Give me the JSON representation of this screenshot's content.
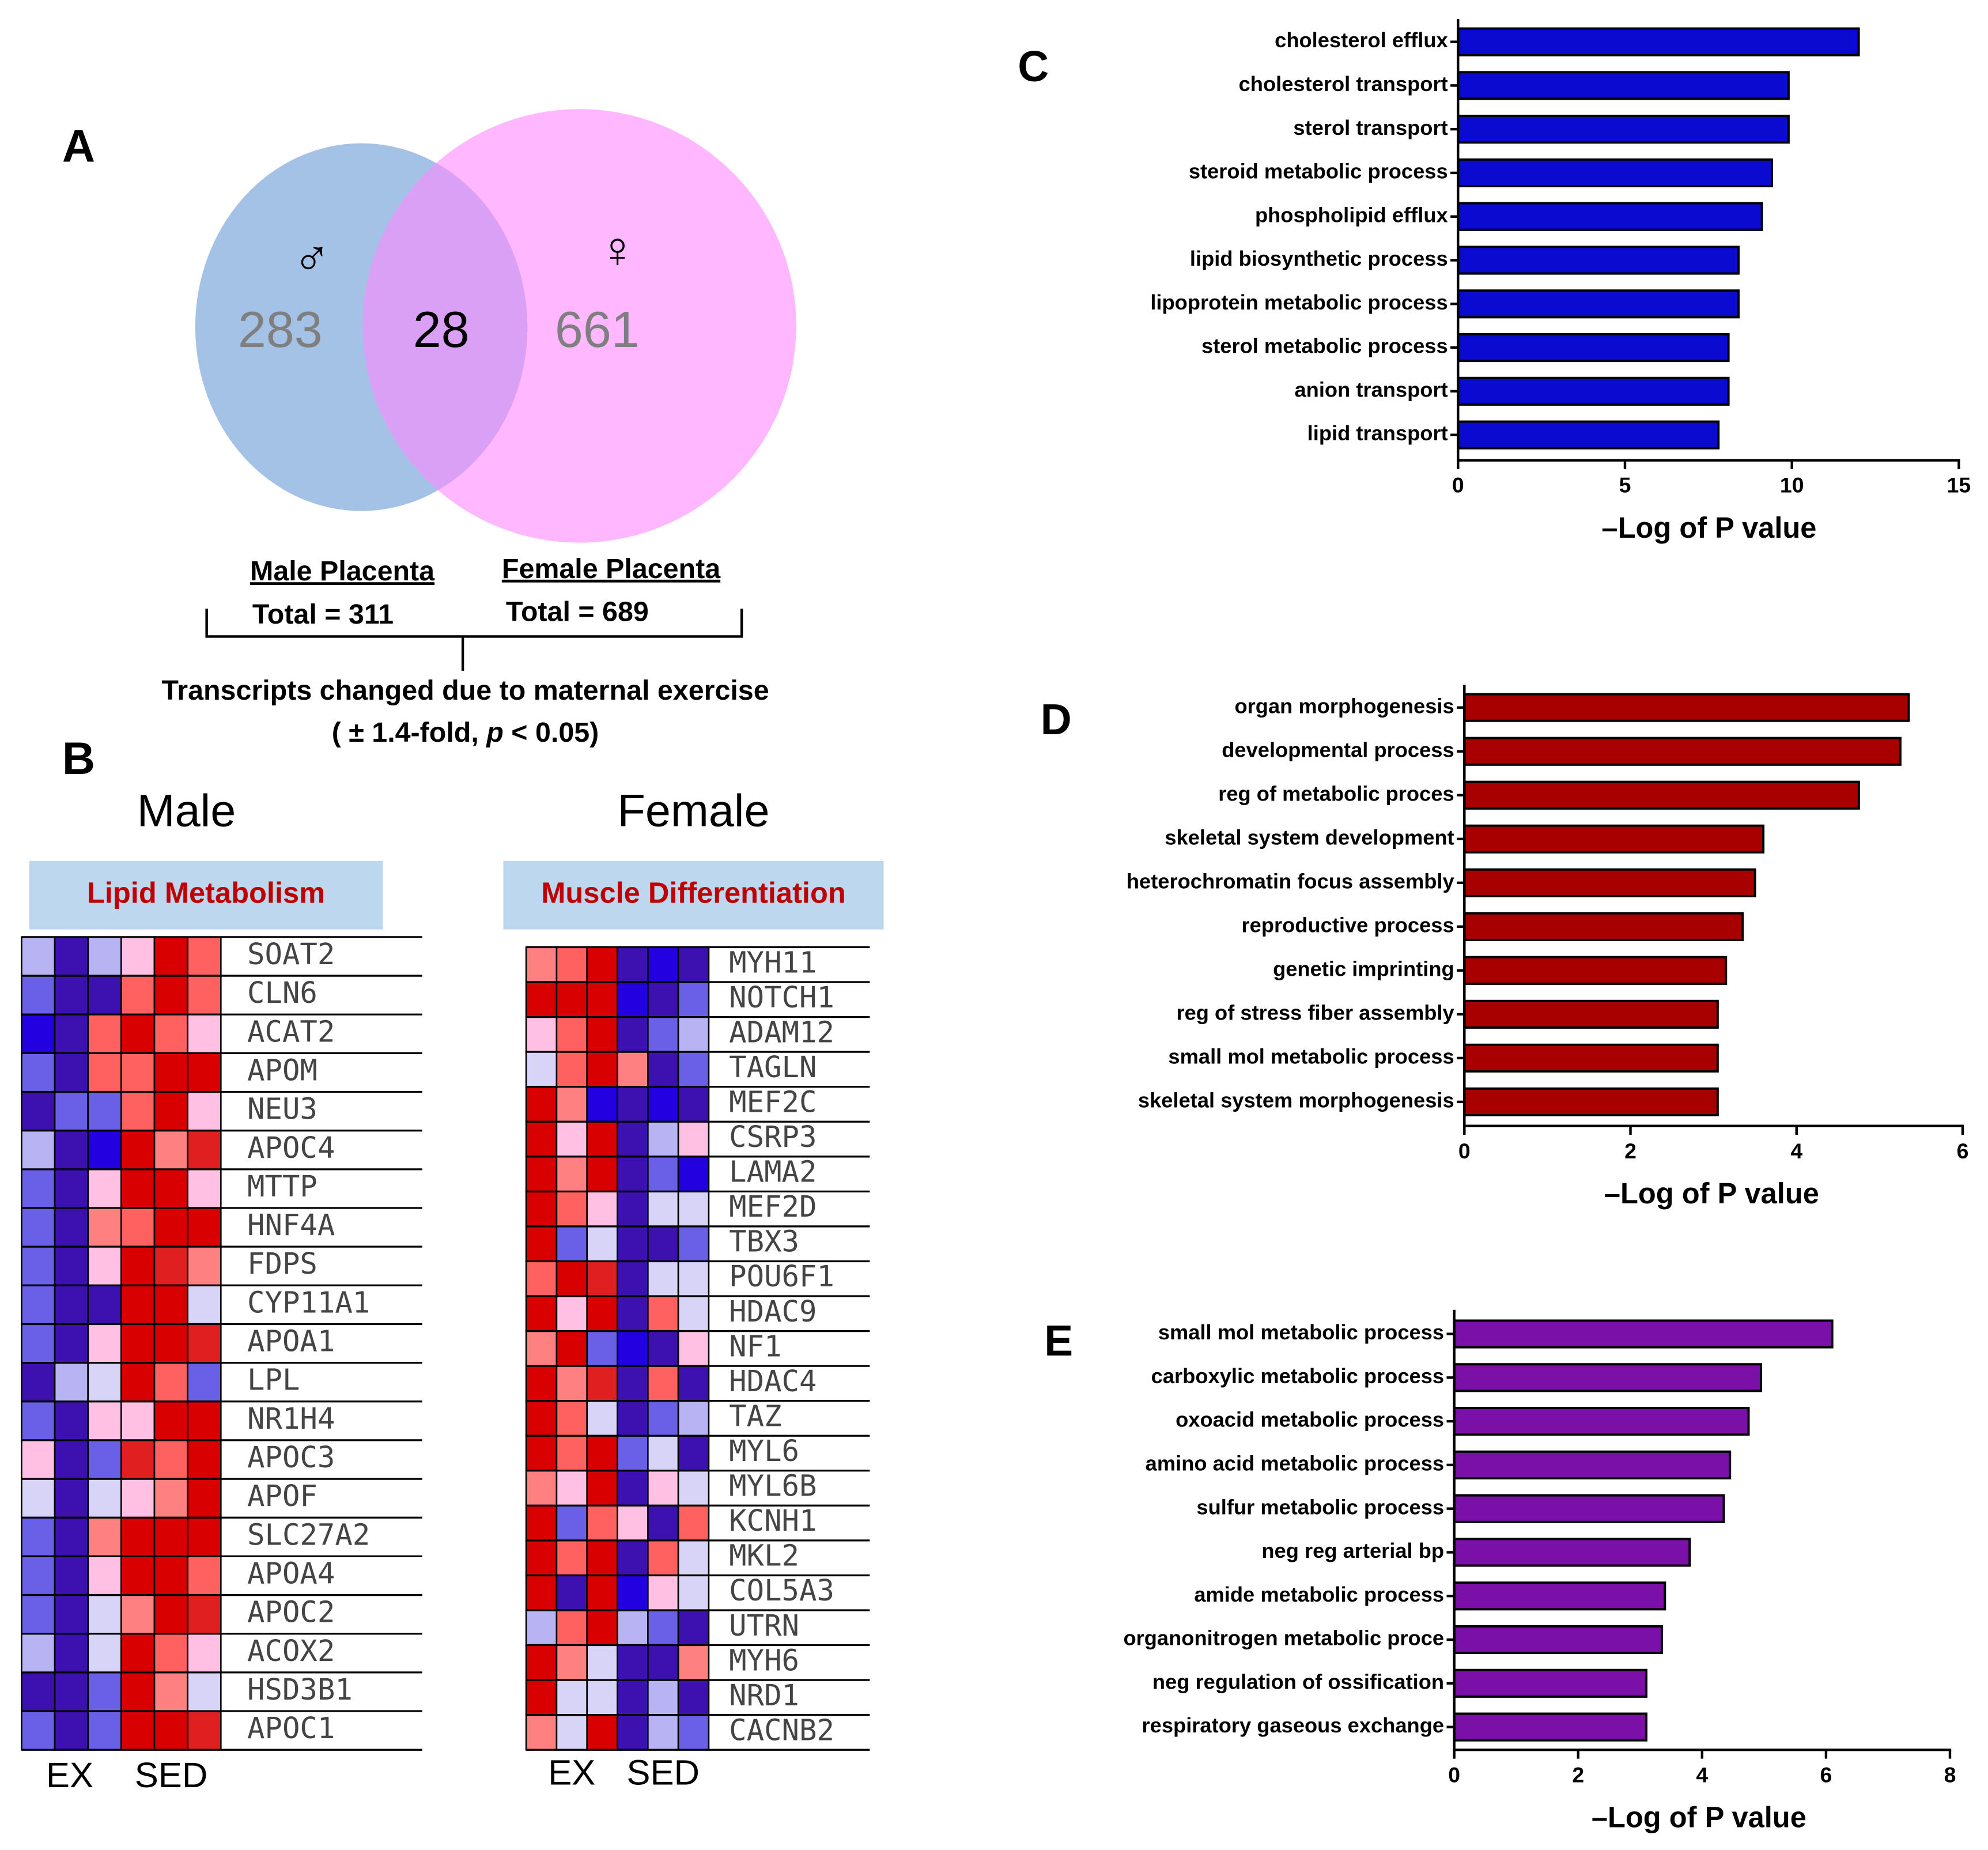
{
  "venn": {
    "panel": "A",
    "male_symbol": "♂",
    "female_symbol": "♀",
    "male_only": 283,
    "shared": 28,
    "female_only": 661,
    "male_label": "Male Placenta",
    "male_total": "Total = 311",
    "female_label": "Female Placenta",
    "female_total": "Total = 689",
    "caption": "Transcripts changed due to maternal exercise",
    "caption_note": [
      "( ± 1.4-fold, ",
      "p",
      " < 0.05)"
    ]
  },
  "heatmap_panel": "B",
  "heatmaps": [
    {
      "title": "Male",
      "category": "Lipid Metabolism",
      "groups": [
        "EX",
        "SED"
      ],
      "genes": [
        "SOAT2",
        "CLN6",
        "ACAT2",
        "APOM",
        "NEU3",
        "APOC4",
        "MTTP",
        "HNF4A",
        "FDPS",
        "CYP11A1",
        "APOA1",
        "LPL",
        "NR1H4",
        "APOC3",
        "APOF",
        "SLC27A2",
        "APOA4",
        "APOC2",
        "ACOX2",
        "HSD3B1",
        "APOC1"
      ],
      "cells": [
        [
          "#b8b4f4",
          "#3d10b0",
          "#b8b4f4",
          "#ffc0e4",
          "#d80000",
          "#ff6060"
        ],
        [
          "#6a60e8",
          "#3d10b0",
          "#3d10b0",
          "#ff6060",
          "#d80000",
          "#ff6060"
        ],
        [
          "#2200e0",
          "#3d10b0",
          "#ff6060",
          "#d80000",
          "#ff6060",
          "#ffc0e4"
        ],
        [
          "#6a60e8",
          "#3d10b0",
          "#ff6060",
          "#ff6060",
          "#d80000",
          "#d80000"
        ],
        [
          "#3d10b0",
          "#6a60e8",
          "#6a60e8",
          "#ff6060",
          "#d80000",
          "#ffc0e4"
        ],
        [
          "#b8b4f4",
          "#3d10b0",
          "#2200e0",
          "#d80000",
          "#ff8080",
          "#e02020"
        ],
        [
          "#6a60e8",
          "#3d10b0",
          "#ffc0e4",
          "#d80000",
          "#d80000",
          "#ffc0e4"
        ],
        [
          "#6a60e8",
          "#3d10b0",
          "#ff8080",
          "#ff6060",
          "#d80000",
          "#d80000"
        ],
        [
          "#6a60e8",
          "#3d10b0",
          "#ffc0e4",
          "#d80000",
          "#e02020",
          "#ff8080"
        ],
        [
          "#6a60e8",
          "#3d10b0",
          "#3d10b0",
          "#d80000",
          "#d80000",
          "#d8d4f8"
        ],
        [
          "#6a60e8",
          "#3d10b0",
          "#ffc0e4",
          "#d80000",
          "#d80000",
          "#e02020"
        ],
        [
          "#3d10b0",
          "#b8b4f4",
          "#d8d4f8",
          "#d80000",
          "#ff6060",
          "#6a60e8"
        ],
        [
          "#6a60e8",
          "#3d10b0",
          "#ffc0e4",
          "#ffc0e4",
          "#d80000",
          "#d80000"
        ],
        [
          "#ffc0e4",
          "#3d10b0",
          "#6a60e8",
          "#e02020",
          "#ff6060",
          "#d80000"
        ],
        [
          "#d8d4f8",
          "#3d10b0",
          "#d8d4f8",
          "#ffc0e4",
          "#ff8080",
          "#d80000"
        ],
        [
          "#6a60e8",
          "#3d10b0",
          "#ff8080",
          "#d80000",
          "#d80000",
          "#d80000"
        ],
        [
          "#6a60e8",
          "#3d10b0",
          "#ffc0e4",
          "#d80000",
          "#d80000",
          "#ff6060"
        ],
        [
          "#6a60e8",
          "#3d10b0",
          "#d8d4f8",
          "#ff8080",
          "#d80000",
          "#e02020"
        ],
        [
          "#b8b4f4",
          "#3d10b0",
          "#d8d4f8",
          "#d80000",
          "#ff6060",
          "#ffc0e4"
        ],
        [
          "#3d10b0",
          "#3d10b0",
          "#6a60e8",
          "#d80000",
          "#ff8080",
          "#d8d4f8"
        ],
        [
          "#6a60e8",
          "#3d10b0",
          "#6a60e8",
          "#d80000",
          "#d80000",
          "#e02020"
        ]
      ]
    },
    {
      "title": "Female",
      "category": "Muscle Differentiation",
      "groups": [
        "EX",
        "SED"
      ],
      "genes": [
        "MYH11",
        "NOTCH1",
        "ADAM12",
        "TAGLN",
        "MEF2C",
        "CSRP3",
        "LAMA2",
        "MEF2D",
        "TBX3",
        "POU6F1",
        "HDAC9",
        "NF1",
        "HDAC4",
        "TAZ",
        "MYL6",
        "MYL6B",
        "KCNH1",
        "MKL2",
        "COL5A3",
        "UTRN",
        "MYH6",
        "NRD1",
        "CACNB2"
      ],
      "cells": [
        [
          "#ff8080",
          "#ff6060",
          "#d80000",
          "#3d10b0",
          "#2200e0",
          "#3d10b0"
        ],
        [
          "#d80000",
          "#d80000",
          "#d80000",
          "#2200e0",
          "#3d10b0",
          "#6a60e8"
        ],
        [
          "#ffc0e4",
          "#ff6060",
          "#d80000",
          "#3d10b0",
          "#6a60e8",
          "#b8b4f4"
        ],
        [
          "#d8d4f8",
          "#ff6060",
          "#d80000",
          "#ff8080",
          "#3d10b0",
          "#6a60e8"
        ],
        [
          "#d80000",
          "#ff8080",
          "#2200e0",
          "#3d10b0",
          "#2200e0",
          "#3d10b0"
        ],
        [
          "#d80000",
          "#ffc0e4",
          "#d80000",
          "#3d10b0",
          "#b8b4f4",
          "#ffc0e4"
        ],
        [
          "#d80000",
          "#ff8080",
          "#d80000",
          "#3d10b0",
          "#6a60e8",
          "#2200e0"
        ],
        [
          "#d80000",
          "#ff6060",
          "#ffc0e4",
          "#3d10b0",
          "#d8d4f8",
          "#d8d4f8"
        ],
        [
          "#d80000",
          "#6a60e8",
          "#d8d4f8",
          "#3d10b0",
          "#3d10b0",
          "#6a60e8"
        ],
        [
          "#ff6060",
          "#d80000",
          "#e02020",
          "#3d10b0",
          "#d8d4f8",
          "#d8d4f8"
        ],
        [
          "#d80000",
          "#ffc0e4",
          "#d80000",
          "#3d10b0",
          "#ff6060",
          "#d8d4f8"
        ],
        [
          "#ff8080",
          "#d80000",
          "#6a60e8",
          "#2200e0",
          "#3d10b0",
          "#ffc0e4"
        ],
        [
          "#d80000",
          "#ff8080",
          "#e02020",
          "#3d10b0",
          "#ff6060",
          "#3d10b0"
        ],
        [
          "#d80000",
          "#ff6060",
          "#d8d4f8",
          "#3d10b0",
          "#6a60e8",
          "#b8b4f4"
        ],
        [
          "#d80000",
          "#ff6060",
          "#d80000",
          "#6a60e8",
          "#d8d4f8",
          "#3d10b0"
        ],
        [
          "#ff8080",
          "#ffc0e4",
          "#d80000",
          "#3d10b0",
          "#ffc0e4",
          "#d8d4f8"
        ],
        [
          "#d80000",
          "#6a60e8",
          "#ff6060",
          "#ffc0e4",
          "#3d10b0",
          "#ff6060"
        ],
        [
          "#d80000",
          "#ff6060",
          "#d80000",
          "#3d10b0",
          "#ff6060",
          "#d8d4f8"
        ],
        [
          "#d80000",
          "#3d10b0",
          "#d80000",
          "#2200e0",
          "#ffc0e4",
          "#d8d4f8"
        ],
        [
          "#b8b4f4",
          "#ff6060",
          "#d80000",
          "#b8b4f4",
          "#6a60e8",
          "#3d10b0"
        ],
        [
          "#d80000",
          "#ff8080",
          "#d8d4f8",
          "#3d10b0",
          "#3d10b0",
          "#ff8080"
        ],
        [
          "#d80000",
          "#d8d4f8",
          "#d8d4f8",
          "#3d10b0",
          "#b8b4f4",
          "#3d10b0"
        ],
        [
          "#ff8080",
          "#d8d4f8",
          "#d80000",
          "#3d10b0",
          "#b8b4f4",
          "#6a60e8"
        ]
      ]
    }
  ],
  "chart_data": [
    {
      "type": "bar",
      "orientation": "horizontal",
      "panel": "C",
      "color": "#0a0ad0",
      "categories": [
        "cholesterol efflux",
        "cholesterol transport",
        "sterol transport",
        "steroid metabolic process",
        "phospholipid efflux",
        "lipid biosynthetic process",
        "lipoprotein metabolic process",
        "sterol metabolic process",
        "anion transport",
        "lipid transport"
      ],
      "values": [
        12.0,
        9.9,
        9.9,
        9.4,
        9.1,
        8.4,
        8.4,
        8.1,
        8.1,
        7.8
      ],
      "xlim": [
        0,
        15
      ],
      "xticks": [
        0,
        5,
        10,
        15
      ],
      "xlabel": "–Log of P value"
    },
    {
      "type": "bar",
      "orientation": "horizontal",
      "panel": "D",
      "color": "#a80000",
      "categories": [
        "organ morphogenesis",
        "developmental process",
        "reg of metabolic proces",
        "skeletal system development",
        "heterochromatin focus assembly",
        "reproductive process",
        "genetic imprinting",
        "reg of stress fiber assembly",
        "small mol metabolic process",
        "skeletal system morphogenesis"
      ],
      "values": [
        5.35,
        5.25,
        4.75,
        3.6,
        3.5,
        3.35,
        3.15,
        3.05,
        3.05,
        3.05
      ],
      "xlim": [
        0,
        6
      ],
      "xticks": [
        0,
        2,
        4,
        6
      ],
      "xlabel": "–Log of P value"
    },
    {
      "type": "bar",
      "orientation": "horizontal",
      "panel": "E",
      "color": "#7a10a8",
      "categories": [
        "small mol metabolic process",
        "carboxylic metabolic process",
        "oxoacid metabolic process",
        "amino acid metabolic process",
        "sulfur metabolic process",
        "neg reg arterial bp",
        "amide metabolic process",
        "organonitrogen metabolic proce",
        "neg regulation of ossification",
        "respiratory gaseous exchange"
      ],
      "values": [
        6.1,
        4.95,
        4.75,
        4.45,
        4.35,
        3.8,
        3.4,
        3.35,
        3.1,
        3.1
      ],
      "xlim": [
        0,
        8
      ],
      "xticks": [
        0,
        2,
        4,
        6,
        8
      ],
      "xlabel": "–Log of P value"
    }
  ]
}
